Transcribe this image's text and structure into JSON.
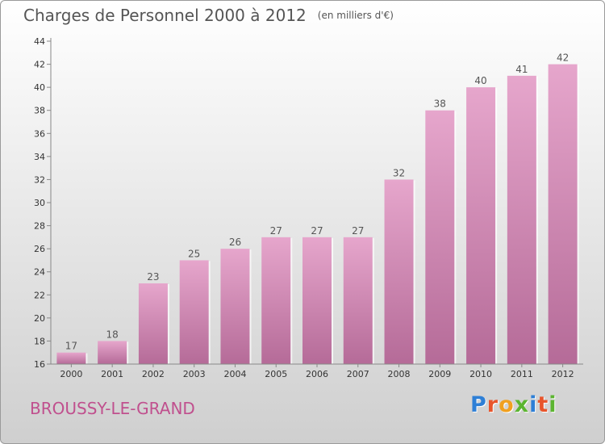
{
  "header": {
    "title": "Charges de Personnel 2000 à 2012",
    "subtitle": "(en milliers d'€)"
  },
  "footer": {
    "city": "BROUSSY-LE-GRAND"
  },
  "logo": {
    "text": "Proxiti",
    "letter_colors": [
      "#2e7fd6",
      "#e8552c",
      "#f0a020",
      "#5cb531",
      "#2e7fd6",
      "#e8552c",
      "#5cb531"
    ]
  },
  "colors": {
    "bar_top": "#e6a6cc",
    "bar_bottom": "#b56b98",
    "text": "#555555",
    "axis": "#888888"
  },
  "chart_data": {
    "type": "bar",
    "title": "Charges de Personnel 2000 à 2012",
    "subtitle": "(en milliers d'€)",
    "categories": [
      "2000",
      "2001",
      "2002",
      "2003",
      "2004",
      "2005",
      "2006",
      "2007",
      "2008",
      "2009",
      "2010",
      "2011",
      "2012"
    ],
    "values": [
      17,
      18,
      23,
      25,
      26,
      27,
      27,
      27,
      32,
      38,
      40,
      41,
      42
    ],
    "ylim": [
      16,
      44
    ],
    "yticks": [
      16,
      18,
      20,
      22,
      24,
      26,
      28,
      30,
      32,
      34,
      36,
      38,
      40,
      42,
      44
    ],
    "data_labels": true,
    "grid": false,
    "legend": "none"
  }
}
